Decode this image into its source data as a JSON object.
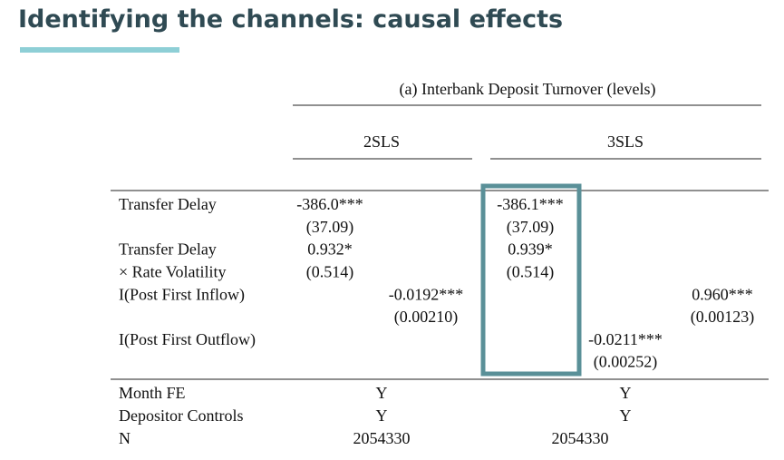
{
  "header": {
    "title": "Identifying the channels: causal effects"
  },
  "table": {
    "panel": "(a) Interbank Deposit Turnover (levels)",
    "groups": [
      "2SLS",
      "3SLS"
    ],
    "rows": [
      {
        "label": "Transfer Delay",
        "cells": [
          "-386.0***",
          null,
          "-386.1***",
          null,
          null
        ]
      },
      {
        "label": null,
        "cells": [
          "(37.09)",
          null,
          "(37.09)",
          null,
          null
        ]
      },
      {
        "label": "Transfer Delay",
        "cells": [
          "0.932*",
          null,
          "0.939*",
          null,
          null
        ]
      },
      {
        "label": "× Rate Volatility",
        "cells": [
          "(0.514)",
          null,
          "(0.514)",
          null,
          null
        ]
      },
      {
        "label": "I(Post First Inflow)",
        "cells": [
          null,
          "-0.0192***",
          null,
          null,
          "0.960***"
        ]
      },
      {
        "label": null,
        "cells": [
          null,
          "(0.00210)",
          null,
          null,
          "(0.00123)"
        ]
      },
      {
        "label": "I(Post First Outflow)",
        "cells": [
          null,
          null,
          null,
          "-0.0211***",
          null
        ]
      },
      {
        "label": null,
        "cells": [
          null,
          null,
          null,
          "(0.00252)",
          null
        ]
      }
    ],
    "summary": [
      {
        "label": "Month FE",
        "cells": [
          "Y",
          "Y"
        ]
      },
      {
        "label": "Depositor Controls",
        "cells": [
          "Y",
          "Y"
        ]
      },
      {
        "label": "N",
        "cells": [
          "2054330",
          "2054330"
        ]
      }
    ]
  }
}
